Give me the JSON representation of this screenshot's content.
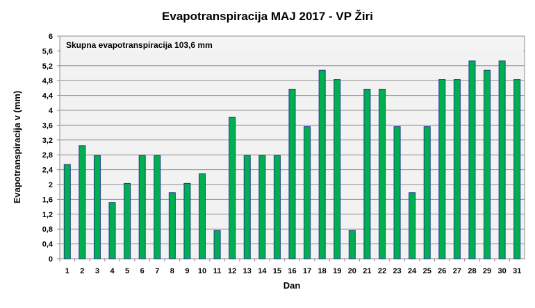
{
  "chart_data": {
    "type": "bar",
    "title": "Evapotranspiracija  MAJ 2017 - VP Žiri",
    "annotation": "Skupna evapotranspiracija  103,6 mm",
    "xlabel": "Dan",
    "ylabel": "Evapotranspiracija v  (mm)",
    "ylim": [
      0,
      6
    ],
    "yticks": [
      "0",
      "0,4",
      "0,8",
      "1,2",
      "1,6",
      "2",
      "2,4",
      "2,8",
      "3,2",
      "3,6",
      "4",
      "4,4",
      "4,8",
      "5,2",
      "5,6",
      "6"
    ],
    "grid": true,
    "categories": [
      "1",
      "2",
      "3",
      "4",
      "5",
      "6",
      "7",
      "8",
      "9",
      "10",
      "11",
      "12",
      "13",
      "14",
      "15",
      "16",
      "17",
      "18",
      "19",
      "20",
      "21",
      "22",
      "23",
      "24",
      "25",
      "26",
      "27",
      "28",
      "29",
      "30",
      "31"
    ],
    "values": [
      2.54,
      3.05,
      2.78,
      1.52,
      2.03,
      2.78,
      2.78,
      1.78,
      2.03,
      2.29,
      0.76,
      3.81,
      2.78,
      2.78,
      2.78,
      4.57,
      3.56,
      5.08,
      4.83,
      0.76,
      4.57,
      4.57,
      3.56,
      1.78,
      3.56,
      4.83,
      4.83,
      5.33,
      5.08,
      5.33,
      4.83
    ],
    "colors": {
      "bar_fill": "#00b050",
      "bar_border": "#1f3b8c",
      "plot_background": "#f2f2f2",
      "grid": "#8c8c8c"
    }
  }
}
